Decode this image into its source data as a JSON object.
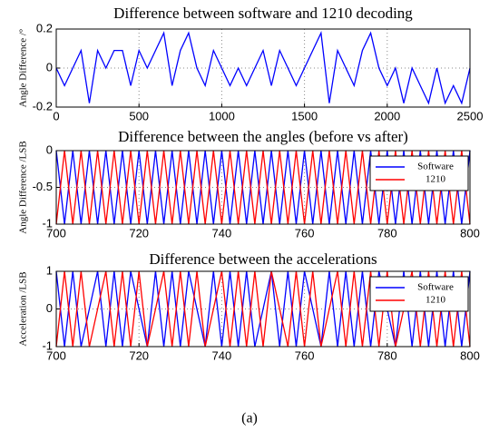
{
  "chart_data": [
    {
      "type": "line",
      "title": "Difference between software and 1210 decoding",
      "ylabel": "Angle Difference /°",
      "x": [
        0,
        50,
        100,
        150,
        200,
        250,
        300,
        350,
        400,
        450,
        500,
        550,
        600,
        650,
        700,
        750,
        800,
        850,
        900,
        950,
        1000,
        1050,
        1100,
        1150,
        1200,
        1250,
        1300,
        1350,
        1400,
        1450,
        1500,
        1550,
        1600,
        1650,
        1700,
        1750,
        1800,
        1850,
        1900,
        1950,
        2000,
        2050,
        2100,
        2150,
        2200,
        2250,
        2300,
        2350,
        2400,
        2450,
        2500
      ],
      "values": [
        0,
        -0.09,
        0,
        0.09,
        -0.18,
        0.09,
        0,
        0.09,
        0.09,
        -0.09,
        0.09,
        0,
        0.09,
        0.18,
        -0.09,
        0.09,
        0.18,
        0,
        -0.09,
        0.09,
        0,
        -0.09,
        0,
        -0.09,
        0,
        0.09,
        -0.09,
        0.09,
        0,
        -0.09,
        0,
        0.09,
        0.18,
        -0.18,
        0.09,
        0,
        -0.09,
        0.09,
        0.18,
        0,
        -0.09,
        0,
        -0.18,
        0,
        -0.09,
        -0.18,
        0,
        -0.18,
        -0.09,
        -0.18,
        0
      ],
      "color": "#0000ff",
      "xlim": [
        0,
        2500
      ],
      "xticks": [
        0,
        500,
        1000,
        1500,
        2000,
        2500
      ],
      "ylim": [
        -0.2,
        0.2
      ],
      "yticks": [
        -0.2,
        0,
        0.2
      ],
      "grid": true
    },
    {
      "type": "line",
      "title": "Difference between the angles (before vs after)",
      "ylabel": "Angle Difference /LSB",
      "x": [
        700,
        702,
        704,
        706,
        708,
        710,
        712,
        714,
        716,
        718,
        720,
        722,
        724,
        726,
        728,
        730,
        732,
        734,
        736,
        738,
        740,
        742,
        744,
        746,
        748,
        750,
        752,
        754,
        756,
        758,
        760,
        762,
        764,
        766,
        768,
        770,
        772,
        774,
        776,
        778,
        780,
        782,
        784,
        786,
        788,
        790,
        792,
        794,
        796,
        798,
        800
      ],
      "series": [
        {
          "name": "Software",
          "color": "#0000ff",
          "values": [
            0,
            -1,
            0,
            -1,
            0,
            -1,
            0,
            -1,
            0,
            -1,
            0,
            -1,
            0,
            -1,
            0,
            -1,
            0,
            -1,
            0,
            -1,
            0,
            -1,
            0,
            -1,
            0,
            -1,
            0,
            -1,
            0,
            -1,
            0,
            -1,
            0,
            -1,
            0,
            -1,
            0,
            -1,
            0,
            -1,
            0,
            -1,
            0,
            -1,
            0,
            -1,
            0,
            -1,
            0,
            -1,
            0
          ]
        },
        {
          "name": "1210",
          "color": "#ff0000",
          "values": [
            -1,
            0,
            -1,
            0,
            -1,
            0,
            -1,
            0,
            -1,
            0,
            -1,
            0,
            -1,
            0,
            -1,
            0,
            -1,
            0,
            -1,
            0,
            -1,
            0,
            -1,
            0,
            -1,
            0,
            -1,
            0,
            -1,
            0,
            -1,
            0,
            -1,
            0,
            -1,
            0,
            -1,
            0,
            -1,
            0,
            -1,
            0,
            -1,
            0,
            -1,
            0,
            -1,
            0,
            -1,
            0,
            -1
          ]
        }
      ],
      "xlim": [
        700,
        800
      ],
      "xticks": [
        700,
        720,
        740,
        760,
        780,
        800
      ],
      "ylim": [
        -1,
        0
      ],
      "yticks": [
        -1,
        -0.5,
        0
      ],
      "grid": true,
      "legend": "upper right"
    },
    {
      "type": "line",
      "title": "Difference between the accelerations",
      "ylabel": "Acceleration /LSB",
      "x": [
        700,
        702,
        704,
        706,
        708,
        710,
        712,
        714,
        716,
        718,
        720,
        722,
        724,
        726,
        728,
        730,
        732,
        734,
        736,
        738,
        740,
        742,
        744,
        746,
        748,
        750,
        752,
        754,
        756,
        758,
        760,
        762,
        764,
        766,
        768,
        770,
        772,
        774,
        776,
        778,
        780,
        782,
        784,
        786,
        788,
        790,
        792,
        794,
        796,
        798,
        800
      ],
      "series": [
        {
          "name": "Software",
          "color": "#0000ff",
          "values": [
            1,
            -1,
            1,
            -1,
            0,
            1,
            -1,
            1,
            -1,
            1,
            0,
            -1,
            1,
            -1,
            1,
            -1,
            1,
            0,
            -1,
            1,
            -1,
            1,
            -1,
            1,
            -1,
            0,
            1,
            -1,
            1,
            -1,
            1,
            0,
            -1,
            1,
            -1,
            1,
            -1,
            1,
            -1,
            1,
            0,
            -1,
            1,
            -1,
            1,
            -1,
            1,
            -1,
            1,
            -1,
            1
          ]
        },
        {
          "name": "1210",
          "color": "#ff0000",
          "values": [
            -1,
            1,
            -1,
            1,
            -1,
            0,
            1,
            -1,
            1,
            -1,
            1,
            -1,
            0,
            1,
            -1,
            1,
            -1,
            1,
            -1,
            0,
            1,
            -1,
            1,
            -1,
            1,
            -1,
            1,
            0,
            -1,
            1,
            -1,
            1,
            -1,
            0,
            1,
            -1,
            1,
            -1,
            1,
            -1,
            1,
            -1,
            0,
            1,
            -1,
            1,
            -1,
            1,
            -1,
            1,
            -1
          ]
        }
      ],
      "xlim": [
        700,
        800
      ],
      "xticks": [
        700,
        720,
        740,
        760,
        780,
        800
      ],
      "ylim": [
        -1,
        1
      ],
      "yticks": [
        -1,
        0,
        1
      ],
      "grid": true,
      "legend": "upper right"
    }
  ],
  "caption": "(a)"
}
